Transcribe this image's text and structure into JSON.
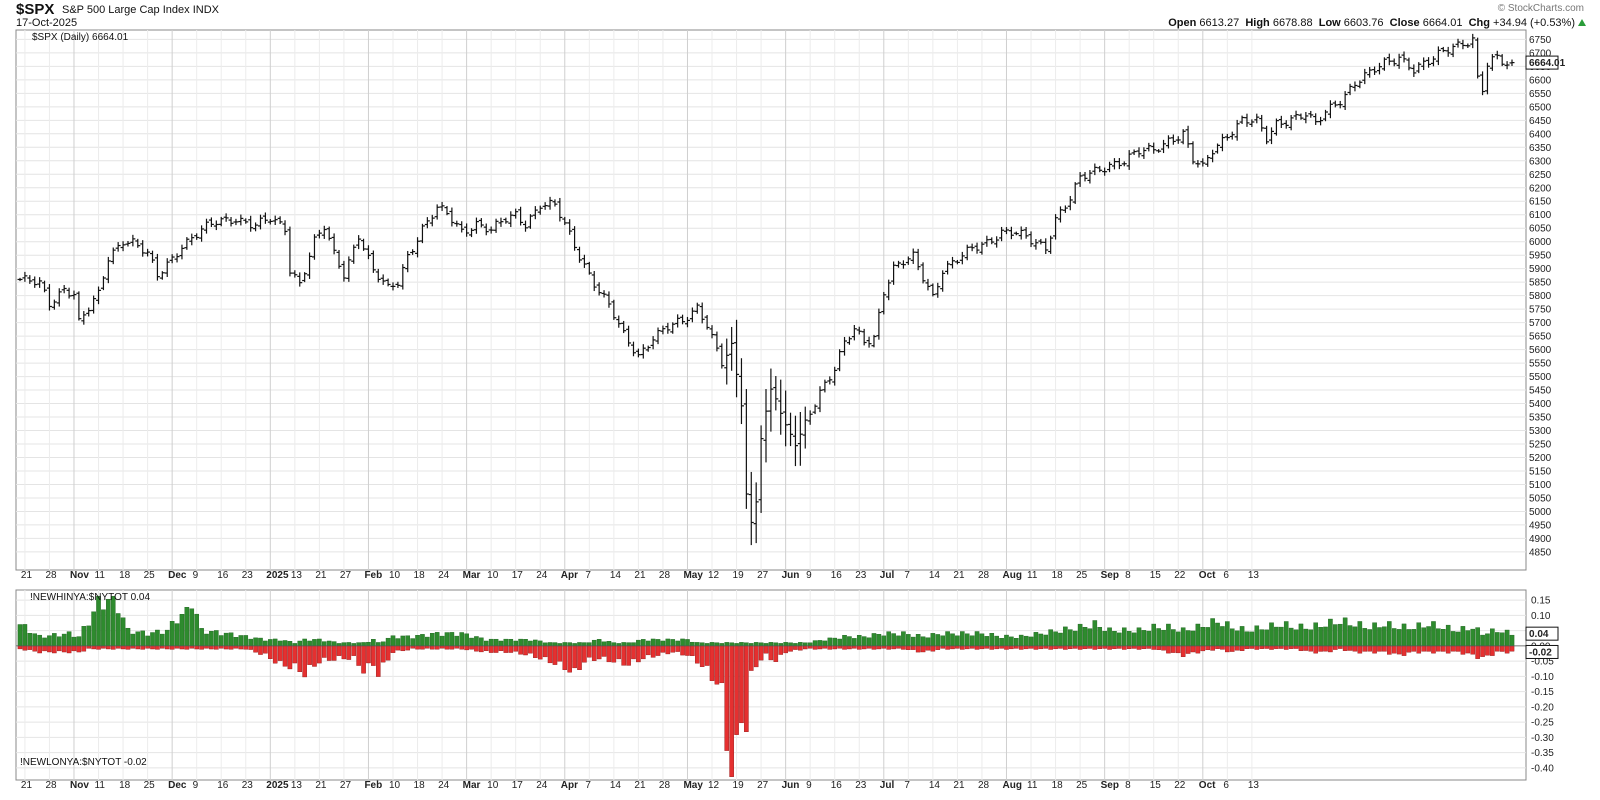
{
  "header": {
    "symbol": "$SPX",
    "name": "S&P 500 Large Cap Index",
    "exchange": "INDX",
    "date": "17-Oct-2025",
    "open_label": "Open",
    "open": "6613.27",
    "high_label": "High",
    "high": "6678.88",
    "low_label": "Low",
    "low": "6603.76",
    "close_label": "Close",
    "close": "6664.01",
    "chg_label": "Chg",
    "chg": "+34.94 (+0.53%)",
    "brand": "© StockCharts.com",
    "arrow_icon": "up-arrow-icon"
  },
  "chart_data": [
    {
      "type": "ohlc",
      "legend": "$SPX (Daily) 6664.01",
      "last_value_label": "6664.01",
      "ylim": [
        4820,
        6770
      ],
      "y_ticks": [
        4850,
        4900,
        4950,
        5000,
        5050,
        5100,
        5150,
        5200,
        5250,
        5300,
        5350,
        5400,
        5450,
        5500,
        5550,
        5600,
        5650,
        5700,
        5750,
        5800,
        5850,
        5900,
        5950,
        6000,
        6050,
        6100,
        6150,
        6200,
        6250,
        6300,
        6350,
        6400,
        6450,
        6500,
        6550,
        6600,
        6650,
        6700,
        6750
      ],
      "x_ticks": [
        "21",
        "28",
        "Nov",
        "11",
        "18",
        "25",
        "Dec",
        "9",
        "16",
        "23",
        "2025",
        "13",
        "21",
        "27",
        "Feb",
        "10",
        "18",
        "24",
        "Mar",
        "10",
        "17",
        "24",
        "Apr",
        "7",
        "14",
        "21",
        "28",
        "May",
        "12",
        "19",
        "27",
        "Jun",
        "9",
        "16",
        "23",
        "Jul",
        "7",
        "14",
        "21",
        "28",
        "Aug",
        "11",
        "18",
        "25",
        "Sep",
        "8",
        "15",
        "22",
        "Oct",
        "6",
        "13"
      ],
      "month_ticks": [
        "Nov",
        "Dec",
        "2025",
        "Feb",
        "Mar",
        "Apr",
        "May",
        "Jun",
        "Jul",
        "Aug",
        "Sep",
        "Oct"
      ],
      "anchors": [
        [
          0,
          5860
        ],
        [
          4,
          5840
        ],
        [
          6,
          5770
        ],
        [
          9,
          5830
        ],
        [
          11,
          5810
        ],
        [
          12,
          5700
        ],
        [
          16,
          5800
        ],
        [
          18,
          5940
        ],
        [
          21,
          6010
        ],
        [
          23,
          6000
        ],
        [
          26,
          5950
        ],
        [
          28,
          5870
        ],
        [
          31,
          5940
        ],
        [
          33,
          5990
        ],
        [
          37,
          6040
        ],
        [
          40,
          6070
        ],
        [
          44,
          6090
        ],
        [
          48,
          6060
        ],
        [
          51,
          6080
        ],
        [
          54,
          6050
        ],
        [
          55,
          5900
        ],
        [
          57,
          5850
        ],
        [
          60,
          6000
        ],
        [
          62,
          6050
        ],
        [
          64,
          5950
        ],
        [
          66,
          5880
        ],
        [
          69,
          6030
        ],
        [
          72,
          5890
        ],
        [
          75,
          5820
        ],
        [
          77,
          5850
        ],
        [
          79,
          5950
        ],
        [
          82,
          6050
        ],
        [
          85,
          6120
        ],
        [
          87,
          6100
        ],
        [
          90,
          6040
        ],
        [
          93,
          6070
        ],
        [
          96,
          6040
        ],
        [
          99,
          6080
        ],
        [
          101,
          6100
        ],
        [
          103,
          6070
        ],
        [
          106,
          6140
        ],
        [
          109,
          6130
        ],
        [
          111,
          6060
        ],
        [
          114,
          5950
        ],
        [
          117,
          5850
        ],
        [
          120,
          5760
        ],
        [
          123,
          5650
        ],
        [
          126,
          5580
        ],
        [
          129,
          5650
        ],
        [
          132,
          5680
        ],
        [
          135,
          5700
        ],
        [
          138,
          5760
        ],
        [
          140,
          5700
        ],
        [
          143,
          5550
        ],
        [
          145,
          5600
        ],
        [
          147,
          5400
        ],
        [
          148,
          5060
        ],
        [
          149,
          4950
        ],
        [
          150,
          5050
        ],
        [
          151,
          5290
        ],
        [
          153,
          5450
        ],
        [
          154,
          5430
        ],
        [
          156,
          5300
        ],
        [
          158,
          5250
        ],
        [
          159,
          5280
        ],
        [
          161,
          5370
        ],
        [
          163,
          5450
        ],
        [
          166,
          5530
        ],
        [
          168,
          5620
        ],
        [
          170,
          5670
        ],
        [
          172,
          5630
        ],
        [
          174,
          5650
        ],
        [
          176,
          5820
        ],
        [
          178,
          5900
        ],
        [
          180,
          5920
        ],
        [
          182,
          5940
        ],
        [
          184,
          5870
        ],
        [
          186,
          5800
        ],
        [
          188,
          5900
        ],
        [
          191,
          5930
        ],
        [
          194,
          5970
        ],
        [
          197,
          6000
        ],
        [
          200,
          6040
        ],
        [
          203,
          6030
        ],
        [
          206,
          6000
        ],
        [
          209,
          5980
        ],
        [
          211,
          6090
        ],
        [
          214,
          6160
        ],
        [
          216,
          6230
        ],
        [
          219,
          6260
        ],
        [
          222,
          6290
        ],
        [
          225,
          6300
        ],
        [
          228,
          6330
        ],
        [
          231,
          6340
        ],
        [
          234,
          6380
        ],
        [
          237,
          6400
        ],
        [
          239,
          6300
        ],
        [
          241,
          6270
        ],
        [
          243,
          6340
        ],
        [
          246,
          6400
        ],
        [
          249,
          6450
        ],
        [
          252,
          6440
        ],
        [
          254,
          6380
        ],
        [
          256,
          6440
        ],
        [
          259,
          6460
        ],
        [
          262,
          6470
        ],
        [
          264,
          6430
        ],
        [
          266,
          6480
        ],
        [
          269,
          6530
        ],
        [
          272,
          6590
        ],
        [
          275,
          6620
        ],
        [
          278,
          6660
        ],
        [
          281,
          6690
        ],
        [
          284,
          6640
        ],
        [
          287,
          6660
        ],
        [
          289,
          6690
        ],
        [
          292,
          6730
        ],
        [
          294,
          6740
        ],
        [
          296,
          6750
        ],
        [
          297,
          6600
        ],
        [
          298,
          6560
        ],
        [
          299,
          6650
        ],
        [
          301,
          6680
        ],
        [
          303,
          6660
        ],
        [
          304,
          6664
        ]
      ],
      "breadth_anchors": [
        [
          0,
          0.07,
          -0.01
        ],
        [
          4,
          0.03,
          -0.02
        ],
        [
          10,
          0.04,
          -0.02
        ],
        [
          12,
          0.03,
          -0.02
        ],
        [
          14,
          0.08,
          -0.01
        ],
        [
          16,
          0.14,
          -0.01
        ],
        [
          18,
          0.15,
          -0.01
        ],
        [
          20,
          0.13,
          -0.01
        ],
        [
          22,
          0.05,
          -0.01
        ],
        [
          26,
          0.04,
          -0.01
        ],
        [
          30,
          0.05,
          -0.01
        ],
        [
          32,
          0.09,
          -0.01
        ],
        [
          34,
          0.11,
          -0.01
        ],
        [
          35,
          0.15,
          -0.01
        ],
        [
          37,
          0.05,
          -0.01
        ],
        [
          42,
          0.04,
          -0.01
        ],
        [
          46,
          0.03,
          -0.01
        ],
        [
          50,
          0.02,
          -0.03
        ],
        [
          53,
          0.02,
          -0.06
        ],
        [
          56,
          0.01,
          -0.07
        ],
        [
          58,
          0.02,
          -0.09
        ],
        [
          61,
          0.02,
          -0.05
        ],
        [
          65,
          0.01,
          -0.04
        ],
        [
          68,
          0.01,
          -0.04
        ],
        [
          70,
          0.01,
          -0.08
        ],
        [
          72,
          0.02,
          -0.06
        ],
        [
          73,
          0.01,
          -0.09
        ],
        [
          76,
          0.03,
          -0.02
        ],
        [
          80,
          0.03,
          -0.01
        ],
        [
          85,
          0.04,
          -0.01
        ],
        [
          90,
          0.04,
          -0.01
        ],
        [
          95,
          0.02,
          -0.02
        ],
        [
          100,
          0.02,
          -0.02
        ],
        [
          104,
          0.02,
          -0.03
        ],
        [
          108,
          0.01,
          -0.05
        ],
        [
          111,
          0.01,
          -0.07
        ],
        [
          113,
          0.01,
          -0.09
        ],
        [
          115,
          0.01,
          -0.05
        ],
        [
          118,
          0.02,
          -0.04
        ],
        [
          121,
          0.01,
          -0.05
        ],
        [
          124,
          0.01,
          -0.06
        ],
        [
          127,
          0.02,
          -0.04
        ],
        [
          130,
          0.02,
          -0.03
        ],
        [
          133,
          0.02,
          -0.02
        ],
        [
          136,
          0.02,
          -0.03
        ],
        [
          138,
          0.01,
          -0.05
        ],
        [
          140,
          0.01,
          -0.08
        ],
        [
          142,
          0.01,
          -0.12
        ],
        [
          143,
          0.01,
          -0.15
        ],
        [
          144,
          0.01,
          -0.3
        ],
        [
          145,
          0.01,
          -0.41
        ],
        [
          146,
          0.01,
          -0.36
        ],
        [
          147,
          0.01,
          -0.22
        ],
        [
          148,
          0.01,
          -0.27
        ],
        [
          149,
          0.01,
          -0.1
        ],
        [
          150,
          0.01,
          -0.06
        ],
        [
          152,
          0.01,
          -0.03
        ],
        [
          154,
          0.01,
          -0.05
        ],
        [
          156,
          0.01,
          -0.02
        ],
        [
          160,
          0.01,
          -0.01
        ],
        [
          164,
          0.02,
          -0.01
        ],
        [
          168,
          0.03,
          -0.01
        ],
        [
          172,
          0.03,
          -0.01
        ],
        [
          176,
          0.04,
          -0.01
        ],
        [
          180,
          0.04,
          -0.01
        ],
        [
          184,
          0.03,
          -0.02
        ],
        [
          188,
          0.04,
          -0.01
        ],
        [
          192,
          0.04,
          -0.01
        ],
        [
          196,
          0.04,
          -0.01
        ],
        [
          200,
          0.03,
          -0.01
        ],
        [
          204,
          0.03,
          -0.01
        ],
        [
          208,
          0.04,
          -0.01
        ],
        [
          212,
          0.05,
          -0.01
        ],
        [
          216,
          0.06,
          -0.01
        ],
        [
          219,
          0.07,
          -0.01
        ],
        [
          222,
          0.05,
          -0.01
        ],
        [
          225,
          0.05,
          -0.01
        ],
        [
          228,
          0.05,
          -0.01
        ],
        [
          231,
          0.06,
          -0.01
        ],
        [
          234,
          0.06,
          -0.02
        ],
        [
          237,
          0.05,
          -0.03
        ],
        [
          240,
          0.06,
          -0.02
        ],
        [
          244,
          0.08,
          -0.01
        ],
        [
          247,
          0.06,
          -0.02
        ],
        [
          250,
          0.05,
          -0.01
        ],
        [
          254,
          0.06,
          -0.01
        ],
        [
          257,
          0.07,
          -0.01
        ],
        [
          260,
          0.06,
          -0.01
        ],
        [
          263,
          0.06,
          -0.02
        ],
        [
          266,
          0.07,
          -0.02
        ],
        [
          269,
          0.08,
          -0.01
        ],
        [
          272,
          0.07,
          -0.02
        ],
        [
          275,
          0.06,
          -0.02
        ],
        [
          278,
          0.07,
          -0.02
        ],
        [
          281,
          0.06,
          -0.03
        ],
        [
          284,
          0.06,
          -0.02
        ],
        [
          287,
          0.07,
          -0.02
        ],
        [
          290,
          0.06,
          -0.02
        ],
        [
          293,
          0.05,
          -0.02
        ],
        [
          296,
          0.06,
          -0.03
        ],
        [
          298,
          0.04,
          -0.04
        ],
        [
          301,
          0.05,
          -0.02
        ],
        [
          304,
          0.04,
          -0.02
        ]
      ]
    },
    {
      "type": "bar",
      "series": [
        {
          "name": "!NEWHINYA:$NYTOT",
          "last": "0.04",
          "color": "#2e8b2e"
        },
        {
          "name": "!NEWLONYA:$NYTOT",
          "last": "-0.02",
          "color": "#e53030"
        }
      ],
      "legend_high": "!NEWHINYA:$NYTOT 0.04",
      "legend_low": "!NEWLONYA:$NYTOT -0.02",
      "last_high_label": "0.04",
      "last_low_label": "-0.02",
      "ylim": [
        -0.42,
        0.17
      ],
      "y_ticks": [
        "0.15",
        "0.10",
        "0.05",
        "0.00",
        "-0.05",
        "-0.10",
        "-0.15",
        "-0.20",
        "-0.25",
        "-0.30",
        "-0.35",
        "-0.40"
      ]
    }
  ]
}
